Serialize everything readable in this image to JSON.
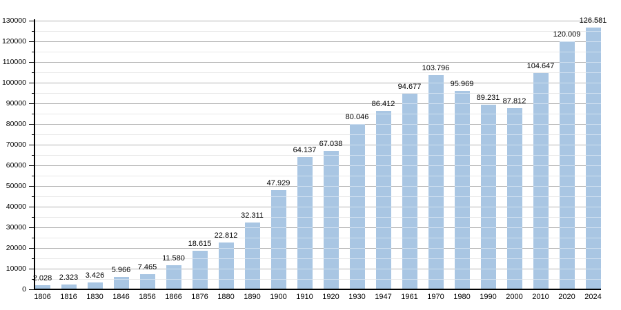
{
  "chart_data": {
    "type": "bar",
    "title": "",
    "xlabel": "",
    "ylabel": "",
    "categories": [
      "1806",
      "1816",
      "1830",
      "1846",
      "1856",
      "1866",
      "1876",
      "1880",
      "1890",
      "1900",
      "1910",
      "1920",
      "1930",
      "1947",
      "1961",
      "1970",
      "1980",
      "1990",
      "2000",
      "2010",
      "2020",
      "2024"
    ],
    "values": [
      2028,
      2323,
      3426,
      5966,
      7465,
      11580,
      18615,
      22812,
      32311,
      47929,
      64137,
      67038,
      80046,
      86412,
      94677,
      103796,
      95969,
      89231,
      87812,
      104647,
      120009,
      126581
    ],
    "value_labels": [
      "2.028",
      "2.323",
      "3.426",
      "5.966",
      "7.465",
      "11.580",
      "18.615",
      "22.812",
      "32.311",
      "47.929",
      "64.137",
      "67.038",
      "80.046",
      "86.412",
      "94.677",
      "103.796",
      "95.969",
      "89.231",
      "87.812",
      "104.647",
      "120.009",
      "126.581"
    ],
    "ylim": [
      0,
      130000
    ],
    "ytick_step": 10000,
    "ytick_minor_step": 5000,
    "ytick_labels": [
      "0",
      "10000",
      "20000",
      "30000",
      "40000",
      "50000",
      "60000",
      "70000",
      "80000",
      "90000",
      "100000",
      "110000",
      "120000",
      "130000"
    ],
    "grid": "on",
    "legend_position": "none",
    "colors": {
      "bar": "#a9c6e3",
      "grid_major": "#b0b0b0",
      "grid_minor": "#e8e8e8",
      "axis": "#000000",
      "text": "#000000",
      "background": "#ffffff"
    }
  }
}
